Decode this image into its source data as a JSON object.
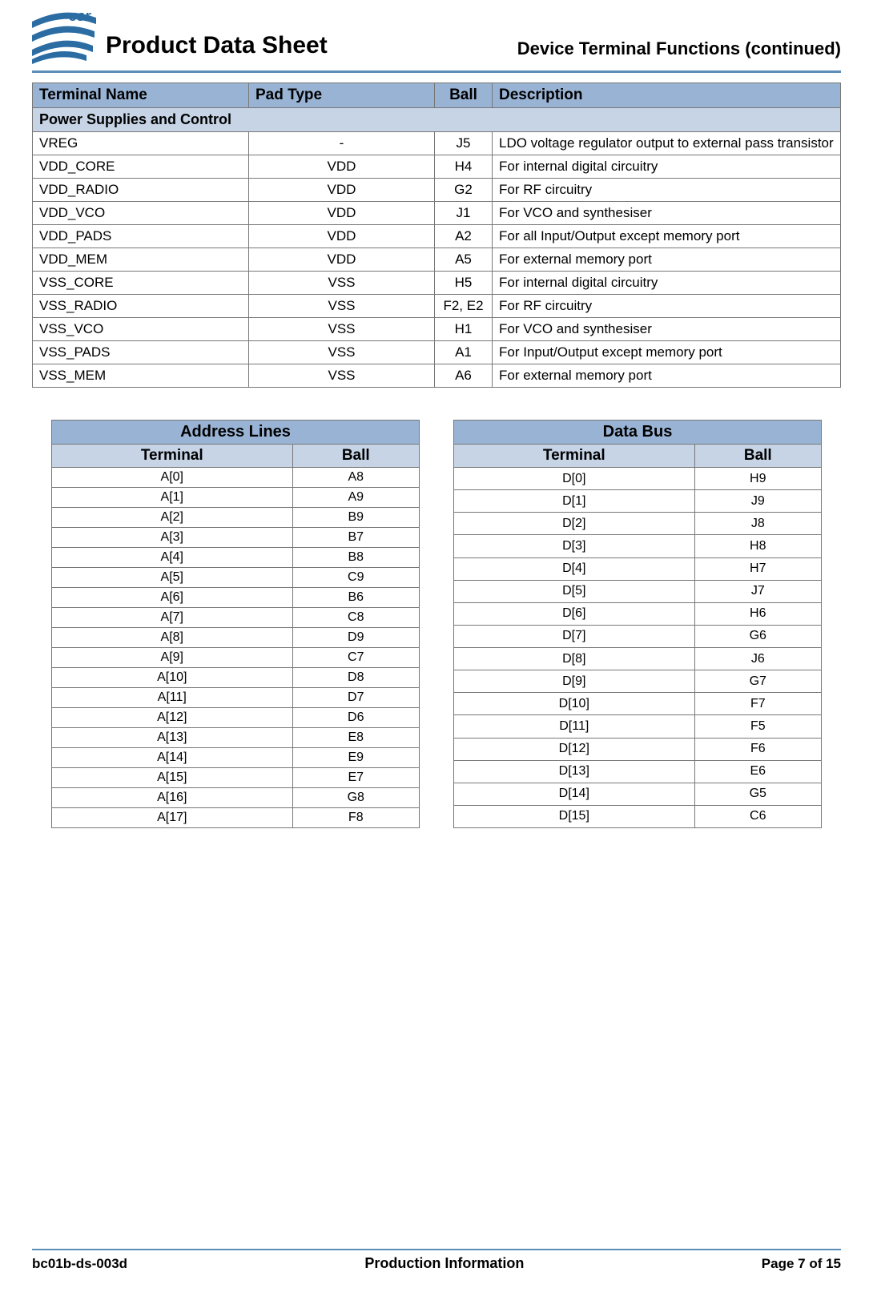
{
  "header": {
    "title": "Product Data Sheet",
    "subtitle": "Device Terminal Functions (continued)"
  },
  "main_table": {
    "columns": [
      "Terminal Name",
      "Pad Type",
      "Ball",
      "Description"
    ],
    "section": "Power Supplies and Control",
    "rows": [
      {
        "name": "VREG",
        "pad": "-",
        "ball": "J5",
        "desc": "LDO voltage regulator output to external pass transistor"
      },
      {
        "name": "VDD_CORE",
        "pad": "VDD",
        "ball": "H4",
        "desc": "For internal digital circuitry"
      },
      {
        "name": "VDD_RADIO",
        "pad": "VDD",
        "ball": "G2",
        "desc": "For RF circuitry"
      },
      {
        "name": "VDD_VCO",
        "pad": "VDD",
        "ball": "J1",
        "desc": "For VCO and synthesiser"
      },
      {
        "name": "VDD_PADS",
        "pad": "VDD",
        "ball": "A2",
        "desc": "For all Input/Output except memory port"
      },
      {
        "name": "VDD_MEM",
        "pad": "VDD",
        "ball": "A5",
        "desc": "For external memory port"
      },
      {
        "name": "VSS_CORE",
        "pad": "VSS",
        "ball": "H5",
        "desc": "For internal digital circuitry"
      },
      {
        "name": "VSS_RADIO",
        "pad": "VSS",
        "ball": "F2, E2",
        "desc": "For RF circuitry"
      },
      {
        "name": "VSS_VCO",
        "pad": "VSS",
        "ball": "H1",
        "desc": "For VCO and synthesiser"
      },
      {
        "name": "VSS_PADS",
        "pad": "VSS",
        "ball": "A1",
        "desc": "For Input/Output except memory port"
      },
      {
        "name": "VSS_MEM",
        "pad": "VSS",
        "ball": "A6",
        "desc": "For external memory port"
      }
    ]
  },
  "address_lines": {
    "title": "Address Lines",
    "columns": [
      "Terminal",
      "Ball"
    ],
    "rows": [
      [
        "A[0]",
        "A8"
      ],
      [
        "A[1]",
        "A9"
      ],
      [
        "A[2]",
        "B9"
      ],
      [
        "A[3]",
        "B7"
      ],
      [
        "A[4]",
        "B8"
      ],
      [
        "A[5]",
        "C9"
      ],
      [
        "A[6]",
        "B6"
      ],
      [
        "A[7]",
        "C8"
      ],
      [
        "A[8]",
        "D9"
      ],
      [
        "A[9]",
        "C7"
      ],
      [
        "A[10]",
        "D8"
      ],
      [
        "A[11]",
        "D7"
      ],
      [
        "A[12]",
        "D6"
      ],
      [
        "A[13]",
        "E8"
      ],
      [
        "A[14]",
        "E9"
      ],
      [
        "A[15]",
        "E7"
      ],
      [
        "A[16]",
        "G8"
      ],
      [
        "A[17]",
        "F8"
      ]
    ]
  },
  "data_bus": {
    "title": "Data Bus",
    "columns": [
      "Terminal",
      "Ball"
    ],
    "rows": [
      [
        "D[0]",
        "H9"
      ],
      [
        "D[1]",
        "J9"
      ],
      [
        "D[2]",
        "J8"
      ],
      [
        "D[3]",
        "H8"
      ],
      [
        "D[4]",
        "H7"
      ],
      [
        "D[5]",
        "J7"
      ],
      [
        "D[6]",
        "H6"
      ],
      [
        "D[7]",
        "G6"
      ],
      [
        "D[8]",
        "J6"
      ],
      [
        "D[9]",
        "G7"
      ],
      [
        "D[10]",
        "F7"
      ],
      [
        "D[11]",
        "F5"
      ],
      [
        "D[12]",
        "F6"
      ],
      [
        "D[13]",
        "E6"
      ],
      [
        "D[14]",
        "G5"
      ],
      [
        "D[15]",
        "C6"
      ]
    ]
  },
  "footer": {
    "left": "bc01b-ds-003d",
    "center": "Production Information",
    "right": "Page 7 of 15"
  },
  "colors": {
    "header_bg": "#99b3d4",
    "section_bg": "#c6d4e6",
    "rule": "#5b8db8"
  }
}
